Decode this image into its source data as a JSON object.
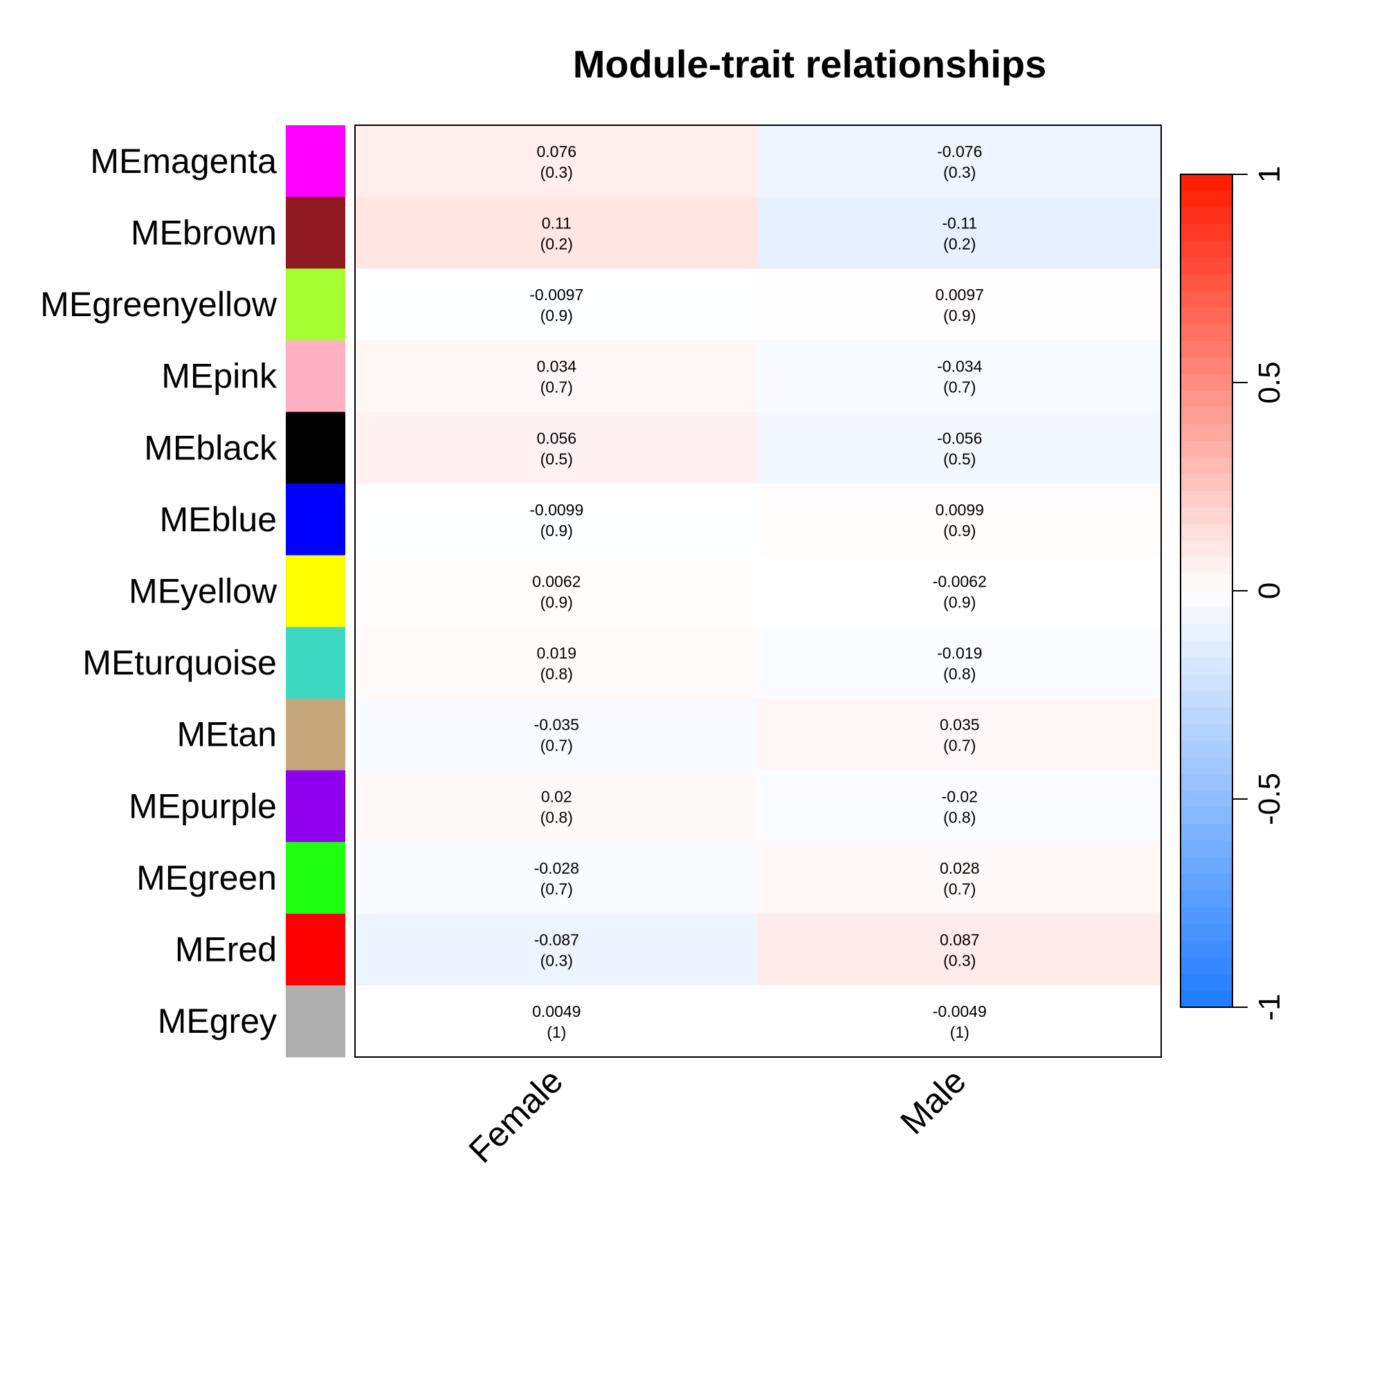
{
  "chart_data": {
    "type": "heatmap",
    "title": "Module-trait relationships",
    "columns": [
      "Female",
      "Male"
    ],
    "rows": [
      {
        "label": "MEmagenta",
        "swatch": "#ff00ff",
        "values": [
          0.076,
          -0.076
        ],
        "cell_text": [
          [
            "0.076",
            "(0.3)"
          ],
          [
            "-0.076",
            "(0.3)"
          ]
        ]
      },
      {
        "label": "MEbrown",
        "swatch": "#8f1b20",
        "values": [
          0.11,
          -0.11
        ],
        "cell_text": [
          [
            "0.11",
            "(0.2)"
          ],
          [
            "-0.11",
            "(0.2)"
          ]
        ]
      },
      {
        "label": "MEgreenyellow",
        "swatch": "#a3ff2f",
        "values": [
          -0.0097,
          0.0097
        ],
        "cell_text": [
          [
            "-0.0097",
            "(0.9)"
          ],
          [
            "0.0097",
            "(0.9)"
          ]
        ]
      },
      {
        "label": "MEpink",
        "swatch": "#ffb1c2",
        "values": [
          0.034,
          -0.034
        ],
        "cell_text": [
          [
            "0.034",
            "(0.7)"
          ],
          [
            "-0.034",
            "(0.7)"
          ]
        ]
      },
      {
        "label": "MEblack",
        "swatch": "#000000",
        "values": [
          0.056,
          -0.056
        ],
        "cell_text": [
          [
            "0.056",
            "(0.5)"
          ],
          [
            "-0.056",
            "(0.5)"
          ]
        ]
      },
      {
        "label": "MEblue",
        "swatch": "#0000ff",
        "values": [
          -0.0099,
          0.0099
        ],
        "cell_text": [
          [
            "-0.0099",
            "(0.9)"
          ],
          [
            "0.0099",
            "(0.9)"
          ]
        ]
      },
      {
        "label": "MEyellow",
        "swatch": "#ffff00",
        "values": [
          0.0062,
          -0.0062
        ],
        "cell_text": [
          [
            "0.0062",
            "(0.9)"
          ],
          [
            "-0.0062",
            "(0.9)"
          ]
        ]
      },
      {
        "label": "MEturquoise",
        "swatch": "#3cd9c2",
        "values": [
          0.019,
          -0.019
        ],
        "cell_text": [
          [
            "0.019",
            "(0.8)"
          ],
          [
            "-0.019",
            "(0.8)"
          ]
        ]
      },
      {
        "label": "MEtan",
        "swatch": "#c6a67b",
        "values": [
          -0.035,
          0.035
        ],
        "cell_text": [
          [
            "-0.035",
            "(0.7)"
          ],
          [
            "0.035",
            "(0.7)"
          ]
        ]
      },
      {
        "label": "MEpurple",
        "swatch": "#8f00ef",
        "values": [
          0.02,
          -0.02
        ],
        "cell_text": [
          [
            "0.02",
            "(0.8)"
          ],
          [
            "-0.02",
            "(0.8)"
          ]
        ]
      },
      {
        "label": "MEgreen",
        "swatch": "#1fff10",
        "values": [
          -0.028,
          0.028
        ],
        "cell_text": [
          [
            "-0.028",
            "(0.7)"
          ],
          [
            "0.028",
            "(0.7)"
          ]
        ]
      },
      {
        "label": "MEred",
        "swatch": "#ff0000",
        "values": [
          -0.087,
          0.087
        ],
        "cell_text": [
          [
            "-0.087",
            "(0.3)"
          ],
          [
            "0.087",
            "(0.3)"
          ]
        ]
      },
      {
        "label": "MEgrey",
        "swatch": "#afafaf",
        "values": [
          0.0049,
          -0.0049
        ],
        "cell_text": [
          [
            "0.0049",
            "(1)"
          ],
          [
            "-0.0049",
            "(1)"
          ]
        ]
      }
    ],
    "colorbar": {
      "range": [
        -1,
        1
      ],
      "ticks": [
        1,
        0.5,
        0,
        -0.5,
        -1
      ],
      "tick_labels": [
        "1",
        "0.5",
        "0",
        "-0.5",
        "-1"
      ],
      "low_color": "#1f7bff",
      "mid_color": "#ffffff",
      "high_color": "#ff1a00"
    },
    "grid": false
  }
}
